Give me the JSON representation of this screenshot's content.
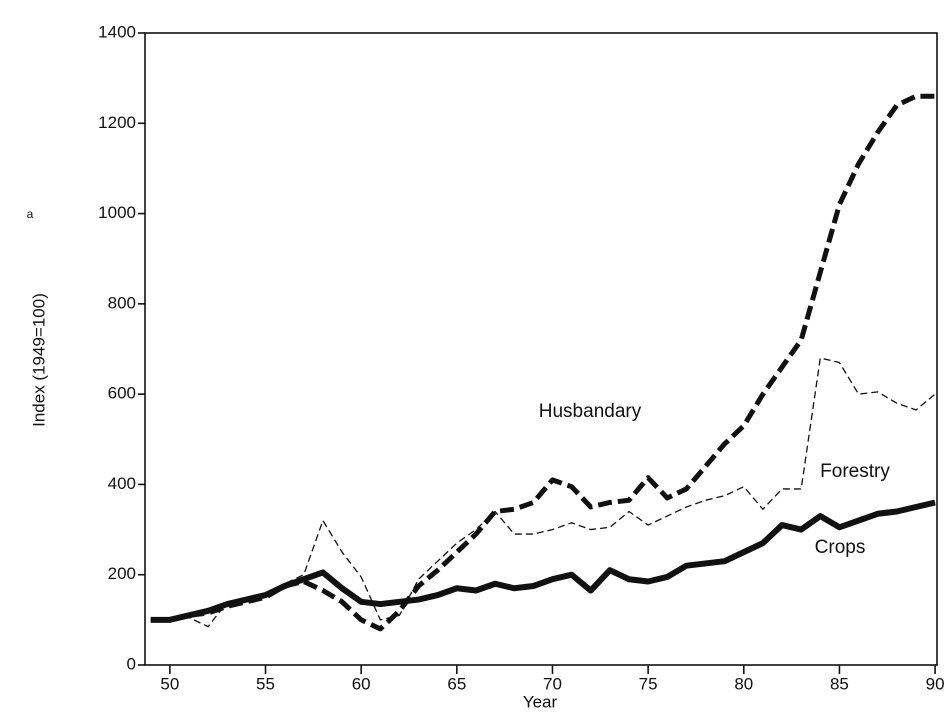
{
  "chart_data": {
    "type": "line",
    "xlabel": "Year",
    "ylabel": "Index (1949=100)",
    "ylabel_footnote_mark": "a",
    "x": [
      49,
      50,
      51,
      52,
      53,
      54,
      55,
      56,
      57,
      58,
      59,
      60,
      61,
      62,
      63,
      64,
      65,
      66,
      67,
      68,
      69,
      70,
      71,
      72,
      73,
      74,
      75,
      76,
      77,
      78,
      79,
      80,
      81,
      82,
      83,
      84,
      85,
      86,
      87,
      88,
      89,
      90
    ],
    "series": [
      {
        "name": "Husbandary",
        "color": "#111111",
        "values": [
          100,
          100,
          110,
          115,
          130,
          140,
          150,
          175,
          185,
          165,
          140,
          100,
          80,
          120,
          175,
          210,
          250,
          290,
          340,
          345,
          360,
          410,
          395,
          350,
          360,
          365,
          415,
          370,
          390,
          440,
          490,
          530,
          600,
          660,
          720,
          870,
          1020,
          1110,
          1180,
          1240,
          1260,
          1260
        ]
      },
      {
        "name": "Forestry",
        "color": "#111111",
        "values": [
          100,
          100,
          105,
          85,
          140,
          145,
          155,
          180,
          200,
          320,
          250,
          195,
          100,
          110,
          190,
          230,
          270,
          300,
          340,
          290,
          290,
          300,
          315,
          300,
          305,
          340,
          310,
          330,
          350,
          365,
          375,
          395,
          345,
          390,
          390,
          680,
          670,
          600,
          605,
          580,
          565,
          600
        ]
      },
      {
        "name": "Crops",
        "color": "#111111",
        "values": [
          100,
          100,
          110,
          120,
          135,
          145,
          155,
          175,
          190,
          205,
          170,
          140,
          135,
          140,
          145,
          155,
          170,
          165,
          180,
          170,
          175,
          190,
          200,
          165,
          210,
          190,
          185,
          195,
          220,
          225,
          230,
          250,
          270,
          310,
          300,
          330,
          305,
          320,
          335,
          340,
          350,
          360
        ]
      }
    ],
    "xlim": [
      48.7,
      90.1
    ],
    "xticks": [
      50,
      55,
      60,
      65,
      70,
      75,
      80,
      85,
      90
    ],
    "ylim": [
      0,
      1400
    ],
    "yticks": [
      0,
      200,
      400,
      600,
      800,
      1000,
      1200,
      1400
    ],
    "grid": false
  }
}
